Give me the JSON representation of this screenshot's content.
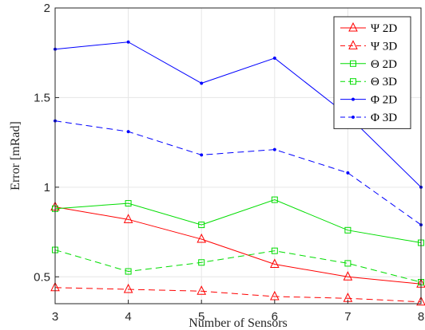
{
  "chart_data": {
    "type": "line",
    "xlabel": "Number of Sensors",
    "ylabel": "Error [mRad]",
    "xlim": [
      3,
      8
    ],
    "ylim": [
      0.35,
      2
    ],
    "x": [
      3,
      4,
      5,
      6,
      7,
      8
    ],
    "xticks": [
      "3",
      "4",
      "5",
      "6",
      "7",
      "8"
    ],
    "yticks": [
      {
        "value": 0.5,
        "label": "0.5"
      },
      {
        "value": 1,
        "label": "1"
      },
      {
        "value": 1.5,
        "label": "1.5"
      },
      {
        "value": 2,
        "label": "2"
      }
    ],
    "grid": true,
    "legend_position": "top-right",
    "series": [
      {
        "name": "Ψ 2D",
        "color": "#ff0000",
        "dash": "solid",
        "marker": "triangle",
        "values": [
          0.89,
          0.82,
          0.71,
          0.57,
          0.5,
          0.46
        ]
      },
      {
        "name": "Ψ 3D",
        "color": "#ff0000",
        "dash": "dashed",
        "marker": "triangle",
        "values": [
          0.44,
          0.43,
          0.42,
          0.39,
          0.38,
          0.36
        ]
      },
      {
        "name": "Θ 2D",
        "color": "#00dd00",
        "dash": "solid",
        "marker": "square",
        "values": [
          0.88,
          0.91,
          0.79,
          0.93,
          0.76,
          0.69
        ]
      },
      {
        "name": "Θ 3D",
        "color": "#00dd00",
        "dash": "dashed",
        "marker": "square",
        "values": [
          0.65,
          0.53,
          0.58,
          0.645,
          0.575,
          0.47
        ]
      },
      {
        "name": "Φ 2D",
        "color": "#0000ff",
        "dash": "solid",
        "marker": "dot",
        "values": [
          1.77,
          1.81,
          1.58,
          1.72,
          1.4,
          1.0
        ]
      },
      {
        "name": "Φ 3D",
        "color": "#0000ff",
        "dash": "dashed",
        "marker": "dot",
        "values": [
          1.37,
          1.31,
          1.18,
          1.21,
          1.08,
          0.79
        ]
      }
    ]
  }
}
